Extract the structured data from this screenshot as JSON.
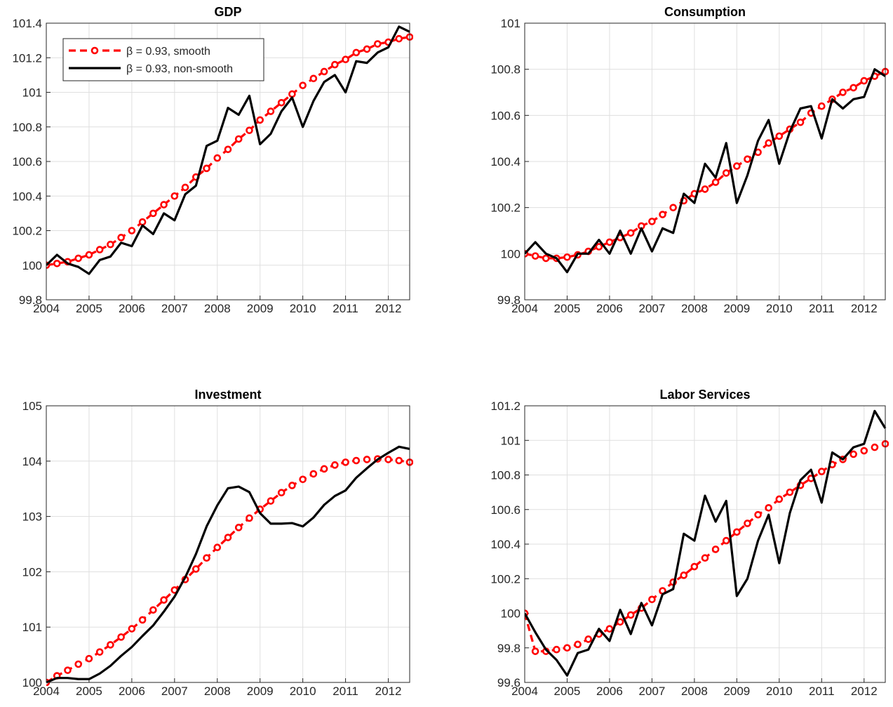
{
  "chart_data": [
    {
      "type": "line",
      "title": "GDP",
      "xlim": [
        2004,
        2012.5
      ],
      "xticks": [
        2004,
        2005,
        2006,
        2007,
        2008,
        2009,
        2010,
        2011,
        2012
      ],
      "ylim": [
        99.8,
        101.4
      ],
      "yticks": [
        99.8,
        100,
        100.2,
        100.4,
        100.6,
        100.8,
        101,
        101.2,
        101.4
      ],
      "grid": true,
      "legend": "upper left",
      "x": [
        2004,
        2004.25,
        2004.5,
        2004.75,
        2005,
        2005.25,
        2005.5,
        2005.75,
        2006,
        2006.25,
        2006.5,
        2006.75,
        2007,
        2007.25,
        2007.5,
        2007.75,
        2008,
        2008.25,
        2008.5,
        2008.75,
        2009,
        2009.25,
        2009.5,
        2009.75,
        2010,
        2010.25,
        2010.5,
        2010.75,
        2011,
        2011.25,
        2011.5,
        2011.75,
        2012,
        2012.25,
        2012.5
      ],
      "series": [
        {
          "name": "β = 0.93, smooth",
          "color": "#ff0000",
          "line_style": "dashed",
          "marker": "circle",
          "values": [
            100,
            100.01,
            100.02,
            100.04,
            100.06,
            100.09,
            100.12,
            100.16,
            100.2,
            100.25,
            100.3,
            100.35,
            100.4,
            100.45,
            100.51,
            100.56,
            100.62,
            100.67,
            100.73,
            100.78,
            100.84,
            100.89,
            100.94,
            100.99,
            101.04,
            101.08,
            101.12,
            101.16,
            101.19,
            101.23,
            101.25,
            101.28,
            101.29,
            101.31,
            101.32
          ]
        },
        {
          "name": "β = 0.93, non-smooth",
          "color": "#000000",
          "line_style": "solid",
          "values": [
            100,
            100.06,
            100.01,
            99.99,
            99.95,
            100.03,
            100.05,
            100.13,
            100.11,
            100.23,
            100.18,
            100.3,
            100.26,
            100.41,
            100.46,
            100.69,
            100.72,
            100.91,
            100.87,
            100.98,
            100.7,
            100.76,
            100.89,
            100.97,
            100.8,
            100.95,
            101.06,
            101.1,
            101,
            101.18,
            101.17,
            101.23,
            101.26,
            101.38,
            101.35
          ]
        }
      ]
    },
    {
      "type": "line",
      "title": "Consumption",
      "xlim": [
        2004,
        2012.5
      ],
      "xticks": [
        2004,
        2005,
        2006,
        2007,
        2008,
        2009,
        2010,
        2011,
        2012
      ],
      "ylim": [
        99.8,
        101
      ],
      "yticks": [
        99.8,
        100,
        100.2,
        100.4,
        100.6,
        100.8,
        101
      ],
      "grid": true,
      "x": [
        2004,
        2004.25,
        2004.5,
        2004.75,
        2005,
        2005.25,
        2005.5,
        2005.75,
        2006,
        2006.25,
        2006.5,
        2006.75,
        2007,
        2007.25,
        2007.5,
        2007.75,
        2008,
        2008.25,
        2008.5,
        2008.75,
        2009,
        2009.25,
        2009.5,
        2009.75,
        2010,
        2010.25,
        2010.5,
        2010.75,
        2011,
        2011.25,
        2011.5,
        2011.75,
        2012,
        2012.25,
        2012.5
      ],
      "series": [
        {
          "color": "#ff0000",
          "line_style": "dashed",
          "marker": "circle",
          "values": [
            100,
            99.99,
            99.98,
            99.98,
            99.985,
            99.995,
            100.01,
            100.03,
            100.05,
            100.07,
            100.09,
            100.12,
            100.14,
            100.17,
            100.2,
            100.23,
            100.26,
            100.28,
            100.31,
            100.35,
            100.38,
            100.41,
            100.44,
            100.48,
            100.51,
            100.54,
            100.57,
            100.61,
            100.64,
            100.67,
            100.7,
            100.72,
            100.75,
            100.77,
            100.79
          ]
        },
        {
          "color": "#000000",
          "line_style": "solid",
          "values": [
            100,
            100.05,
            100,
            99.98,
            99.92,
            100,
            100,
            100.06,
            100,
            100.1,
            100,
            100.11,
            100.01,
            100.11,
            100.09,
            100.26,
            100.22,
            100.39,
            100.33,
            100.48,
            100.22,
            100.34,
            100.49,
            100.58,
            100.39,
            100.53,
            100.63,
            100.64,
            100.5,
            100.67,
            100.63,
            100.67,
            100.68,
            100.8,
            100.77
          ]
        }
      ]
    },
    {
      "type": "line",
      "title": "Investment",
      "xlim": [
        2004,
        2012.5
      ],
      "xticks": [
        2004,
        2005,
        2006,
        2007,
        2008,
        2009,
        2010,
        2011,
        2012
      ],
      "ylim": [
        100,
        105
      ],
      "yticks": [
        100,
        101,
        102,
        103,
        104,
        105
      ],
      "grid": true,
      "x": [
        2004,
        2004.25,
        2004.5,
        2004.75,
        2005,
        2005.25,
        2005.5,
        2005.75,
        2006,
        2006.25,
        2006.5,
        2006.75,
        2007,
        2007.25,
        2007.5,
        2007.75,
        2008,
        2008.25,
        2008.5,
        2008.75,
        2009,
        2009.25,
        2009.5,
        2009.75,
        2010,
        2010.25,
        2010.5,
        2010.75,
        2011,
        2011.25,
        2011.5,
        2011.75,
        2012,
        2012.25,
        2012.5
      ],
      "series": [
        {
          "color": "#ff0000",
          "line_style": "dashed",
          "marker": "circle",
          "values": [
            100,
            100.12,
            100.22,
            100.33,
            100.43,
            100.55,
            100.68,
            100.82,
            100.97,
            101.13,
            101.31,
            101.49,
            101.67,
            101.86,
            102.05,
            102.25,
            102.44,
            102.62,
            102.8,
            102.97,
            103.13,
            103.28,
            103.43,
            103.56,
            103.67,
            103.77,
            103.86,
            103.93,
            103.98,
            104.01,
            104.03,
            104.04,
            104.03,
            104.01,
            103.98
          ]
        },
        {
          "color": "#000000",
          "line_style": "solid",
          "values": [
            100,
            100.08,
            100.08,
            100.06,
            100.06,
            100.16,
            100.3,
            100.48,
            100.64,
            100.84,
            101.03,
            101.28,
            101.55,
            101.9,
            102.32,
            102.82,
            103.2,
            103.51,
            103.54,
            103.44,
            103.06,
            102.87,
            102.87,
            102.88,
            102.82,
            102.98,
            103.21,
            103.37,
            103.47,
            103.7,
            103.87,
            104.03,
            104.15,
            104.26,
            104.22
          ]
        }
      ]
    },
    {
      "type": "line",
      "title": "Labor Services",
      "xlim": [
        2004,
        2012.5
      ],
      "xticks": [
        2004,
        2005,
        2006,
        2007,
        2008,
        2009,
        2010,
        2011,
        2012
      ],
      "ylim": [
        99.6,
        101.2
      ],
      "yticks": [
        99.6,
        99.8,
        100,
        100.2,
        100.4,
        100.6,
        100.8,
        101,
        101.2
      ],
      "grid": true,
      "x": [
        2004,
        2004.25,
        2004.5,
        2004.75,
        2005,
        2005.25,
        2005.5,
        2005.75,
        2006,
        2006.25,
        2006.5,
        2006.75,
        2007,
        2007.25,
        2007.5,
        2007.75,
        2008,
        2008.25,
        2008.5,
        2008.75,
        2009,
        2009.25,
        2009.5,
        2009.75,
        2010,
        2010.25,
        2010.5,
        2010.75,
        2011,
        2011.25,
        2011.5,
        2011.75,
        2012,
        2012.25,
        2012.5
      ],
      "series": [
        {
          "color": "#ff0000",
          "line_style": "dashed",
          "marker": "circle",
          "values": [
            100,
            99.78,
            99.78,
            99.79,
            99.8,
            99.82,
            99.85,
            99.88,
            99.91,
            99.95,
            99.99,
            100.03,
            100.08,
            100.13,
            100.18,
            100.22,
            100.27,
            100.32,
            100.37,
            100.42,
            100.47,
            100.52,
            100.57,
            100.61,
            100.66,
            100.7,
            100.74,
            100.78,
            100.82,
            100.86,
            100.89,
            100.92,
            100.94,
            100.96,
            100.98
          ]
        },
        {
          "color": "#000000",
          "line_style": "solid",
          "values": [
            100,
            99.89,
            99.79,
            99.73,
            99.64,
            99.77,
            99.79,
            99.91,
            99.84,
            100.02,
            99.88,
            100.06,
            99.93,
            100.11,
            100.14,
            100.46,
            100.42,
            100.68,
            100.53,
            100.65,
            100.1,
            100.2,
            100.42,
            100.57,
            100.29,
            100.58,
            100.77,
            100.83,
            100.64,
            100.93,
            100.89,
            100.96,
            100.98,
            101.17,
            101.07
          ]
        }
      ]
    }
  ]
}
